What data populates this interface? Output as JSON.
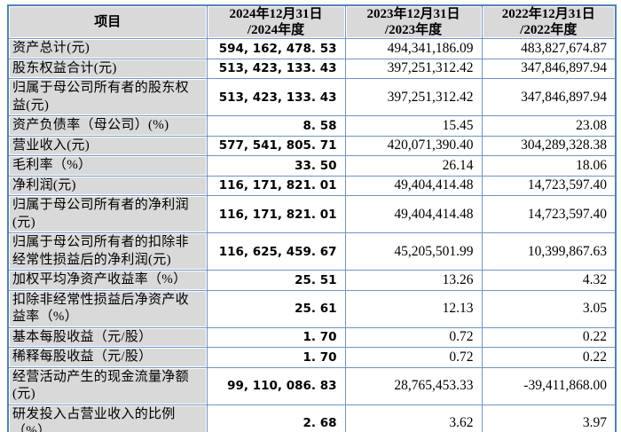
{
  "colors": {
    "grid_border": "#6e95c5",
    "outer_border": "#4f81bd",
    "header_and_label_background": "#d9d9d9",
    "text": "#000000"
  },
  "table": {
    "header": {
      "item_label": "项目",
      "periods": [
        "2024年12月31日\n/2024年度",
        "2023年12月31日\n/2023年度",
        "2022年12月31日\n/2022年度"
      ]
    },
    "rows": [
      {
        "label": "资产总计(元)",
        "values": [
          "594, 162, 478. 53",
          "494,341,186.09",
          "483,827,674.87"
        ]
      },
      {
        "label": "股东权益合计(元)",
        "values": [
          "513, 423, 133. 43",
          "397,251,312.42",
          "347,846,897.94"
        ]
      },
      {
        "label": "归属于母公司所有者的股东权\n益(元)",
        "values": [
          "513, 423, 133. 43",
          "397,251,312.42",
          "347,846,897.94"
        ]
      },
      {
        "label": "资产负债率（母公司）(%)",
        "values": [
          "8. 58",
          "15.45",
          "23.08"
        ]
      },
      {
        "label": "营业收入(元)",
        "values": [
          "577, 541, 805. 71",
          "420,071,390.40",
          "304,289,328.38"
        ]
      },
      {
        "label": "毛利率（%）",
        "values": [
          "33. 50",
          "26.14",
          "18.06"
        ]
      },
      {
        "label": "净利润(元)",
        "values": [
          "116, 171, 821. 01",
          "49,404,414.48",
          "14,723,597.40"
        ]
      },
      {
        "label": "归属于母公司所有者的净利润\n(元)",
        "values": [
          "116, 171, 821. 01",
          "49,404,414.48",
          "14,723,597.40"
        ]
      },
      {
        "label": "归属于母公司所有者的扣除非\n经常性损益后的净利润(元)",
        "values": [
          "116, 625, 459. 67",
          "45,205,501.99",
          "10,399,867.63"
        ]
      },
      {
        "label": "加权平均净资产收益率（%）",
        "values": [
          "25. 51",
          "13.26",
          "4.32"
        ]
      },
      {
        "label": "扣除非经常性损益后净资产收\n益率（%）",
        "values": [
          "25. 61",
          "12.13",
          "3.05"
        ]
      },
      {
        "label": "基本每股收益（元/股）",
        "values": [
          "1. 70",
          "0.72",
          "0.22"
        ]
      },
      {
        "label": "稀释每股收益（元/股）",
        "values": [
          "1. 70",
          "0.72",
          "0.22"
        ]
      },
      {
        "label": "经营活动产生的现金流量净额\n(元)",
        "values": [
          "99, 110, 086. 83",
          "28,765,453.33",
          "-39,411,868.00"
        ]
      },
      {
        "label": "研发投入占营业收入的比例\n（%）",
        "values": [
          "2. 68",
          "3.62",
          "3.97"
        ]
      }
    ]
  }
}
